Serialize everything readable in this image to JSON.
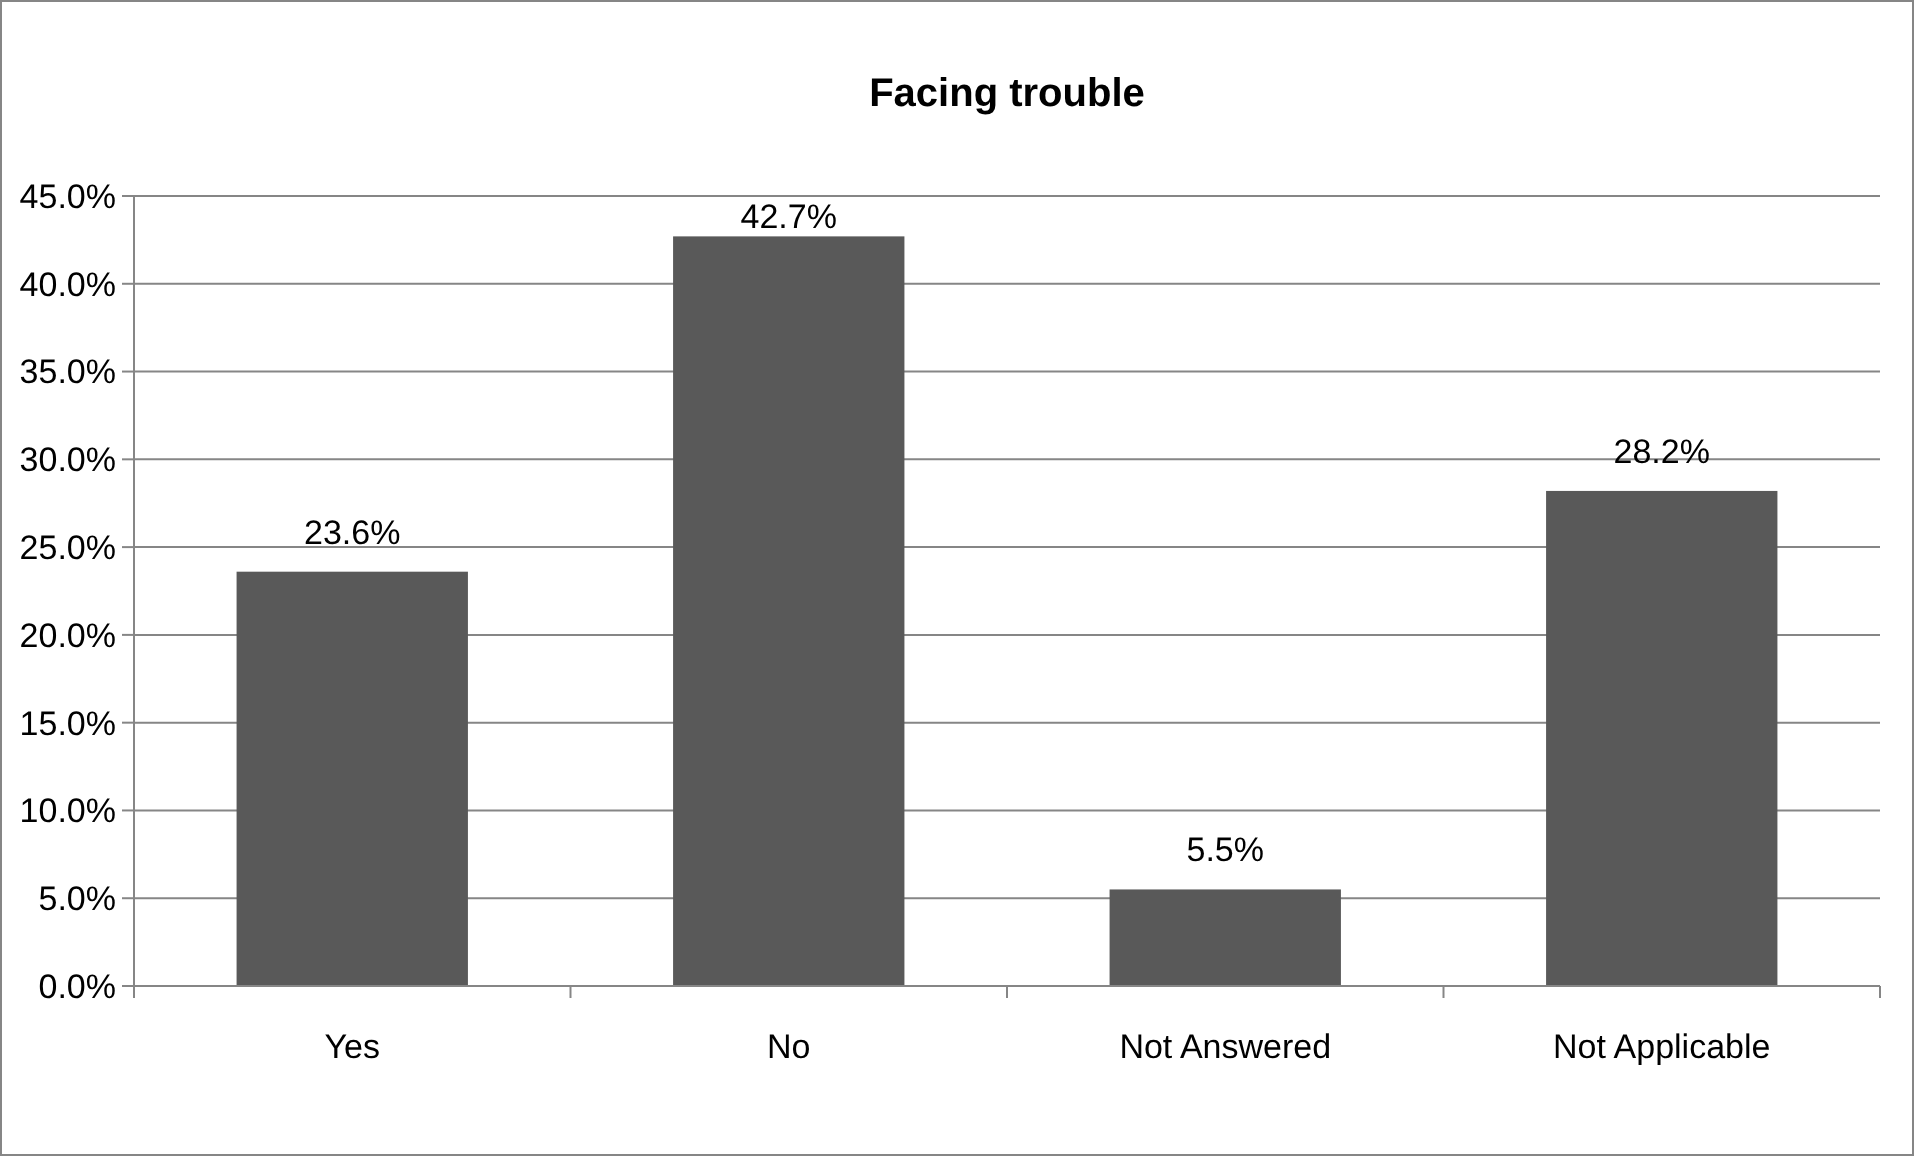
{
  "chart_data": {
    "type": "bar",
    "title": "Facing trouble",
    "categories": [
      "Yes",
      "No",
      "Not Answered",
      "Not Applicable"
    ],
    "values": [
      23.6,
      42.7,
      5.5,
      28.2
    ],
    "value_labels": [
      "23.6%",
      "42.7%",
      "5.5%",
      "28.2%"
    ],
    "color": "#595959",
    "ylim": [
      0,
      45
    ],
    "yticks": [
      {
        "value": 0,
        "label": "0.0%"
      },
      {
        "value": 5,
        "label": "5.0%"
      },
      {
        "value": 10,
        "label": "10.0%"
      },
      {
        "value": 15,
        "label": "15.0%"
      },
      {
        "value": 20,
        "label": "20.0%"
      },
      {
        "value": 25,
        "label": "25.0%"
      },
      {
        "value": 30,
        "label": "30.0%"
      },
      {
        "value": 35,
        "label": "35.0%"
      },
      {
        "value": 40,
        "label": "40.0%"
      },
      {
        "value": 45,
        "label": "45.0%"
      }
    ],
    "grid": "y"
  }
}
